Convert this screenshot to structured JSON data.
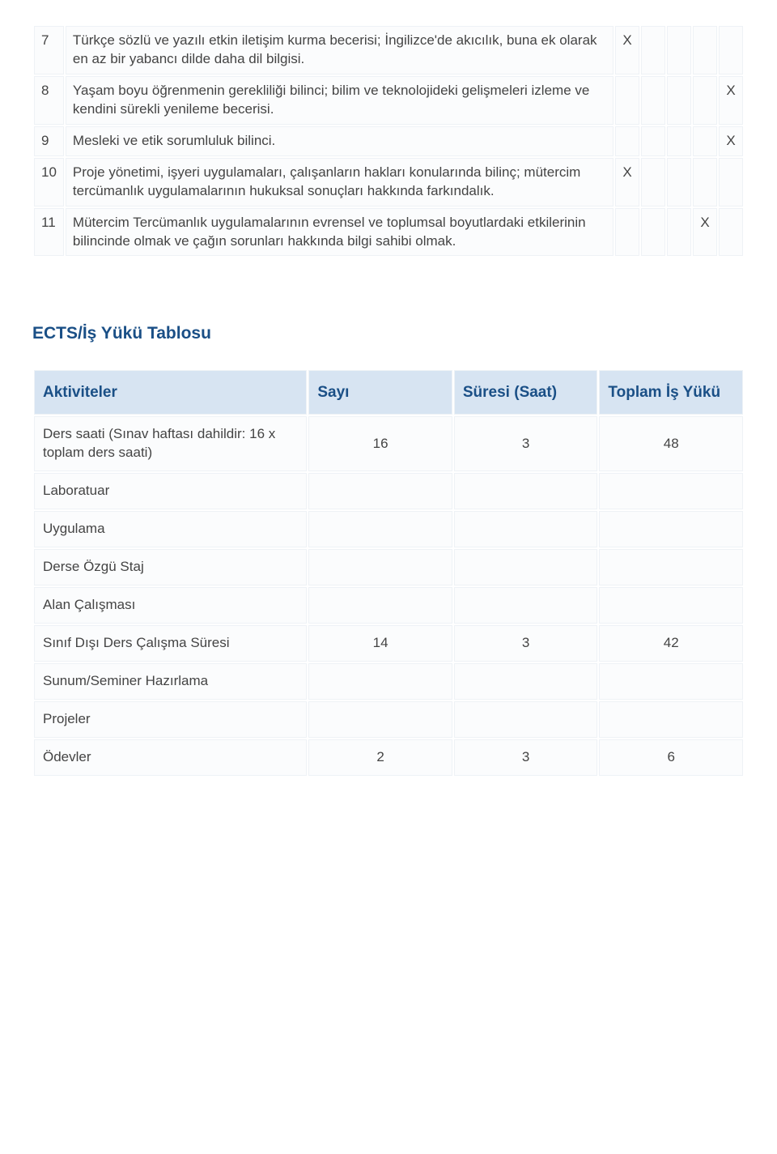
{
  "outcomes": {
    "rows": [
      {
        "num": "7",
        "text": "Türkçe sözlü ve yazılı etkin iletişim kurma becerisi; İngilizce'de akıcılık, buna ek olarak en az bir yabancı dilde daha dil bilgisi.",
        "marks": [
          "X",
          "",
          "",
          "",
          ""
        ]
      },
      {
        "num": "8",
        "text": "Yaşam boyu öğrenmenin gerekliliği bilinci; bilim ve teknolojideki gelişmeleri izleme ve kendini sürekli yenileme becerisi.",
        "marks": [
          "",
          "",
          "",
          "",
          "X"
        ]
      },
      {
        "num": "9",
        "text": "Mesleki ve etik sorumluluk bilinci.",
        "marks": [
          "",
          "",
          "",
          "",
          "X"
        ]
      },
      {
        "num": "10",
        "text": "Proje yönetimi, işyeri uygulamaları, çalışanların hakları konularında bilinç; mütercim tercümanlık uygulamalarının hukuksal sonuçları hakkında farkındalık.",
        "marks": [
          "X",
          "",
          "",
          "",
          ""
        ]
      },
      {
        "num": "11",
        "text": "Mütercim Tercümanlık uygulamalarının evrensel ve toplumsal boyutlardaki etkilerinin bilincinde olmak ve çağın sorunları hakkında bilgi sahibi olmak.",
        "marks": [
          "",
          "",
          "",
          "X",
          ""
        ]
      }
    ]
  },
  "section_title": "ECTS/İş Yükü Tablosu",
  "workload": {
    "headers": [
      "Aktiviteler",
      "Sayı",
      "Süresi (Saat)",
      "Toplam İş Yükü"
    ],
    "rows": [
      {
        "activity": "Ders saati (Sınav haftası dahildir: 16 x toplam ders saati)",
        "count": "16",
        "duration": "3",
        "total": "48"
      },
      {
        "activity": "Laboratuar",
        "count": "",
        "duration": "",
        "total": ""
      },
      {
        "activity": "Uygulama",
        "count": "",
        "duration": "",
        "total": ""
      },
      {
        "activity": "Derse Özgü Staj",
        "count": "",
        "duration": "",
        "total": ""
      },
      {
        "activity": "Alan Çalışması",
        "count": "",
        "duration": "",
        "total": ""
      },
      {
        "activity": "Sınıf Dışı Ders Çalışma Süresi",
        "count": "14",
        "duration": "3",
        "total": "42"
      },
      {
        "activity": "Sunum/Seminer Hazırlama",
        "count": "",
        "duration": "",
        "total": ""
      },
      {
        "activity": "Projeler",
        "count": "",
        "duration": "",
        "total": ""
      },
      {
        "activity": "Ödevler",
        "count": "2",
        "duration": "3",
        "total": "6"
      }
    ]
  },
  "colors": {
    "header_bg": "#d7e4f2",
    "header_text": "#1a4f86",
    "cell_bg": "#fbfcfd",
    "cell_border": "#eef2f6",
    "body_text": "#444444"
  }
}
